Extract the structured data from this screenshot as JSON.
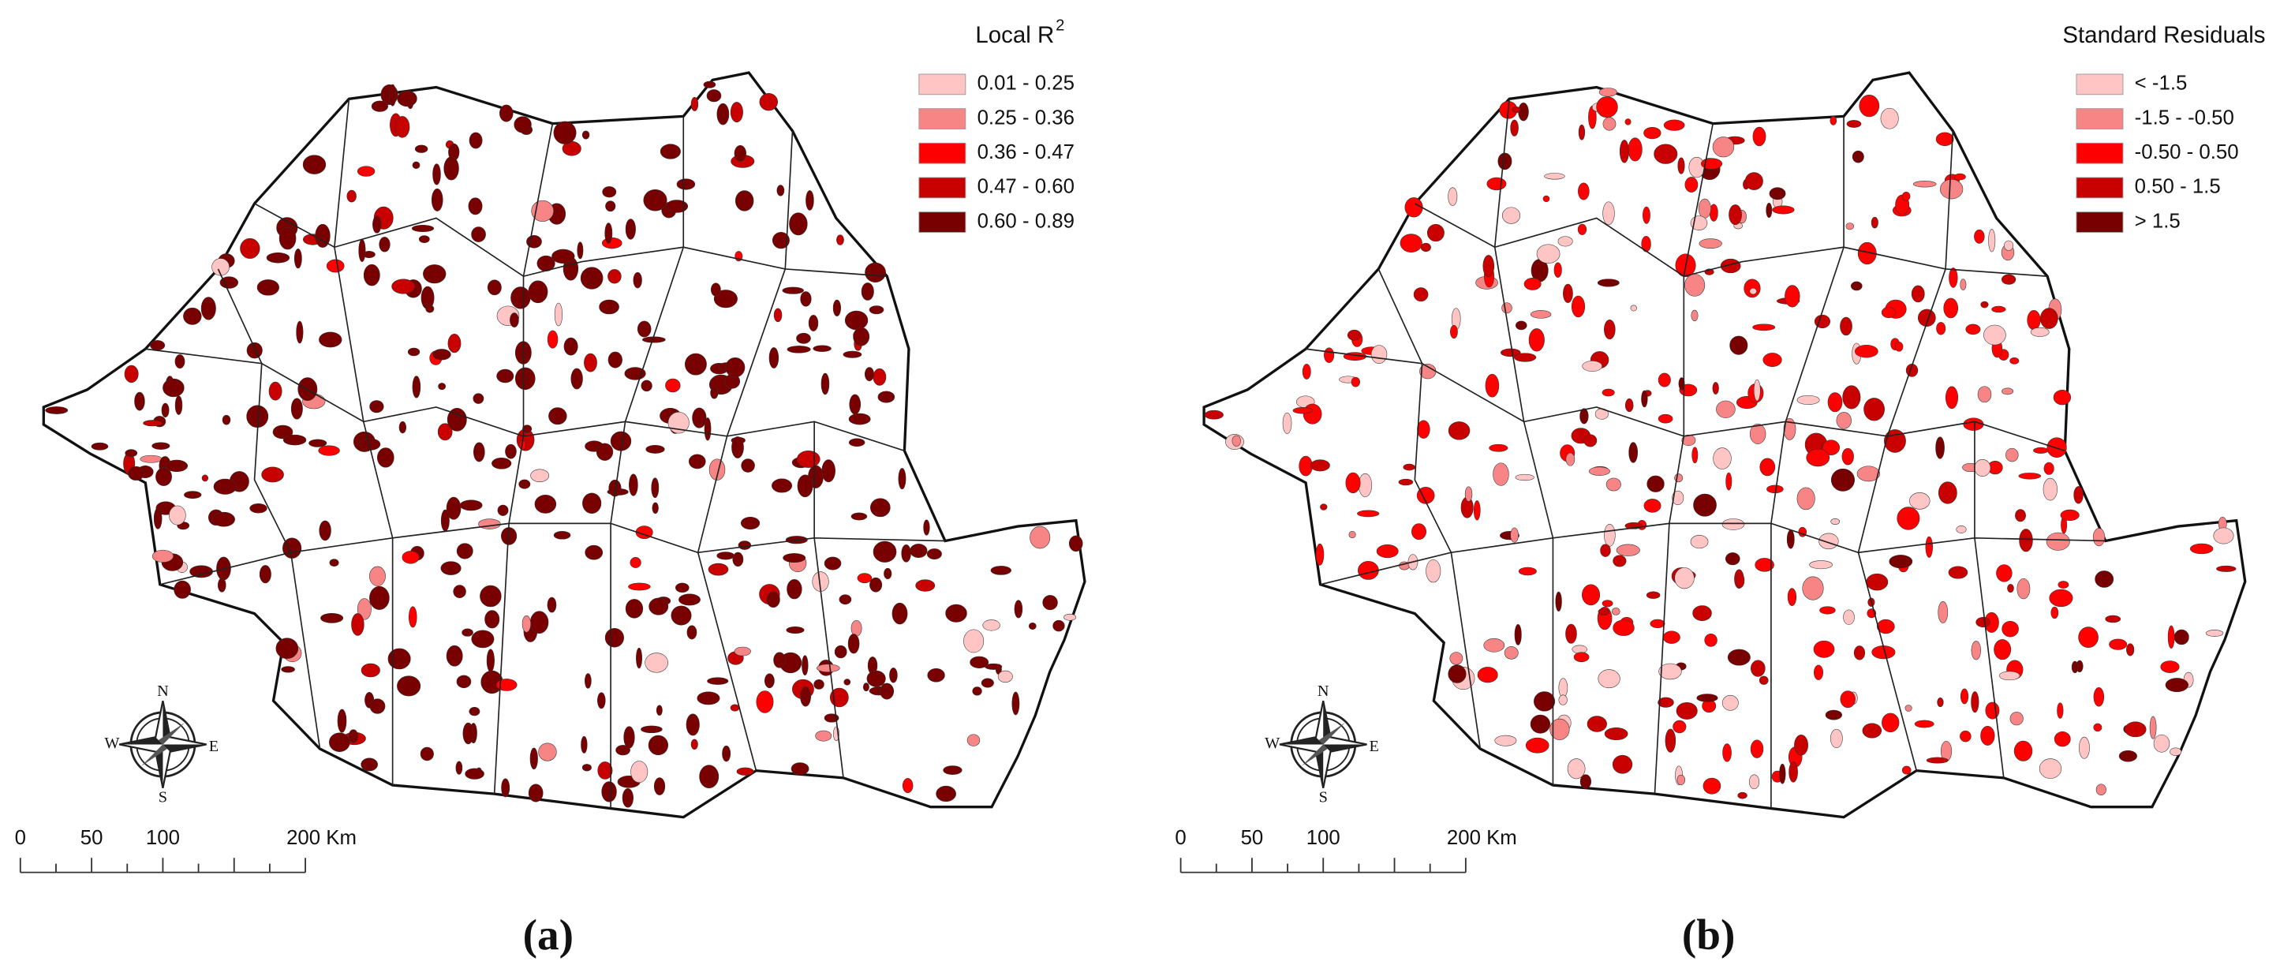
{
  "panels": [
    {
      "legend": {
        "title": "Local R",
        "title_superscript": "2",
        "items": [
          {
            "label": "0.01 - 0.25",
            "color": "#ffc4c4"
          },
          {
            "label": "0.25 - 0.36",
            "color": "#f78585"
          },
          {
            "label": "0.36 - 0.47",
            "color": "#ff0000"
          },
          {
            "label": "0.47 - 0.60",
            "color": "#c80000"
          },
          {
            "label": "0.60 - 0.89",
            "color": "#780000"
          }
        ]
      },
      "scale_bar": [
        "0",
        "50",
        "100",
        "200 Km"
      ],
      "compass": {
        "n": "N",
        "e": "E",
        "s": "S",
        "w": "W"
      },
      "caption": "(a)"
    },
    {
      "legend": {
        "title": "Standard Residuals",
        "items": [
          {
            "label": "< -1.5",
            "color": "#ffc4c4"
          },
          {
            "label": "-1.5 - -0.50",
            "color": "#f78585"
          },
          {
            "label": "-0.50 - 0.50",
            "color": "#ff0000"
          },
          {
            "label": "0.50 - 1.5",
            "color": "#c80000"
          },
          {
            "label": "> 1.5",
            "color": "#780000"
          }
        ]
      },
      "scale_bar": [
        "0",
        "50",
        "100",
        "200 Km"
      ],
      "compass": {
        "n": "N",
        "e": "E",
        "s": "S",
        "w": "W"
      },
      "caption": "(b)"
    }
  ]
}
